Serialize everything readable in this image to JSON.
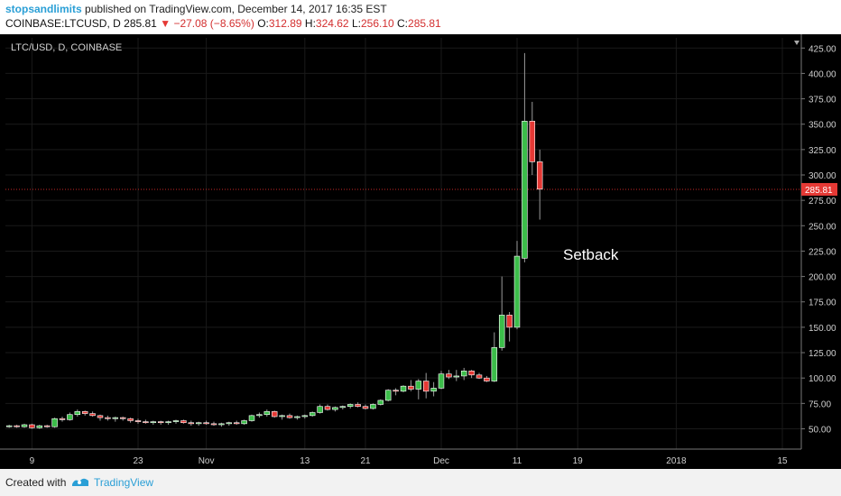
{
  "header": {
    "user": "stopsandlimits",
    "published_text": " published on TradingView.com, December 14, 2017 16:35 EST",
    "symbol": "COINBASE:LTCUSD, D",
    "last": "285.81",
    "down_arrow": "▼",
    "change": "−27.08 (−8.65%)",
    "o_label": "O:",
    "o_value": "312.89",
    "h_label": "H:",
    "h_value": "324.62",
    "l_label": "L:",
    "l_value": "256.10",
    "c_label": "C:",
    "c_value": "285.81"
  },
  "footer": {
    "created_with": "Created with",
    "brand": "TradingView"
  },
  "chart_data": {
    "type": "candlestick",
    "title": "LTC/USD, D, COINBASE",
    "annotation": "Setback",
    "last_price_label": "285.81",
    "last_price": 285.81,
    "ylim": [
      30,
      435
    ],
    "y_ticks": [
      50,
      75,
      100,
      125,
      150,
      175,
      200,
      225,
      250,
      275,
      300,
      325,
      350,
      375,
      400,
      425
    ],
    "y_tick_labels": [
      "50.00",
      "75.00",
      "100.00",
      "125.00",
      "150.00",
      "175.00",
      "200.00",
      "225.00",
      "250.00",
      "275.00",
      "300.00",
      "325.00",
      "350.00",
      "375.00",
      "400.00",
      "425.00"
    ],
    "x_ticks": [
      {
        "label": "9",
        "index": 3
      },
      {
        "label": "23",
        "index": 17
      },
      {
        "label": "Nov",
        "index": 26
      },
      {
        "label": "13",
        "index": 39
      },
      {
        "label": "21",
        "index": 47
      },
      {
        "label": "Dec",
        "index": 57
      },
      {
        "label": "11",
        "index": 67
      },
      {
        "label": "19",
        "index": 75
      },
      {
        "label": "2018",
        "index": 88
      },
      {
        "label": "15",
        "index": 102
      }
    ],
    "x_range": [
      -0.5,
      104.5
    ],
    "candles": [
      {
        "o": 52,
        "h": 54,
        "l": 51,
        "c": 53
      },
      {
        "o": 53,
        "h": 54,
        "l": 51,
        "c": 52
      },
      {
        "o": 52,
        "h": 55,
        "l": 51,
        "c": 54
      },
      {
        "o": 54,
        "h": 55,
        "l": 50,
        "c": 51
      },
      {
        "o": 51,
        "h": 54,
        "l": 50,
        "c": 53
      },
      {
        "o": 53,
        "h": 54,
        "l": 51,
        "c": 52
      },
      {
        "o": 52,
        "h": 61,
        "l": 51,
        "c": 60
      },
      {
        "o": 60,
        "h": 62,
        "l": 57,
        "c": 59
      },
      {
        "o": 59,
        "h": 66,
        "l": 58,
        "c": 64
      },
      {
        "o": 64,
        "h": 69,
        "l": 62,
        "c": 67
      },
      {
        "o": 67,
        "h": 68,
        "l": 63,
        "c": 65
      },
      {
        "o": 65,
        "h": 67,
        "l": 62,
        "c": 63
      },
      {
        "o": 63,
        "h": 64,
        "l": 58,
        "c": 61
      },
      {
        "o": 61,
        "h": 63,
        "l": 58,
        "c": 60
      },
      {
        "o": 60,
        "h": 62,
        "l": 57,
        "c": 61
      },
      {
        "o": 61,
        "h": 62,
        "l": 58,
        "c": 60
      },
      {
        "o": 60,
        "h": 61,
        "l": 56,
        "c": 58
      },
      {
        "o": 58,
        "h": 60,
        "l": 55,
        "c": 57
      },
      {
        "o": 57,
        "h": 59,
        "l": 55,
        "c": 56
      },
      {
        "o": 56,
        "h": 58,
        "l": 54,
        "c": 57
      },
      {
        "o": 57,
        "h": 58,
        "l": 54,
        "c": 56
      },
      {
        "o": 56,
        "h": 58,
        "l": 54,
        "c": 57
      },
      {
        "o": 57,
        "h": 59,
        "l": 55,
        "c": 58
      },
      {
        "o": 58,
        "h": 59,
        "l": 55,
        "c": 56
      },
      {
        "o": 56,
        "h": 58,
        "l": 53,
        "c": 55
      },
      {
        "o": 55,
        "h": 57,
        "l": 53,
        "c": 56
      },
      {
        "o": 56,
        "h": 58,
        "l": 54,
        "c": 55
      },
      {
        "o": 55,
        "h": 57,
        "l": 53,
        "c": 54
      },
      {
        "o": 54,
        "h": 56,
        "l": 52,
        "c": 55
      },
      {
        "o": 55,
        "h": 57,
        "l": 53,
        "c": 56
      },
      {
        "o": 56,
        "h": 58,
        "l": 54,
        "c": 55
      },
      {
        "o": 55,
        "h": 59,
        "l": 54,
        "c": 58
      },
      {
        "o": 58,
        "h": 64,
        "l": 57,
        "c": 63
      },
      {
        "o": 63,
        "h": 66,
        "l": 61,
        "c": 64
      },
      {
        "o": 64,
        "h": 69,
        "l": 62,
        "c": 67
      },
      {
        "o": 67,
        "h": 68,
        "l": 61,
        "c": 62
      },
      {
        "o": 62,
        "h": 64,
        "l": 59,
        "c": 63
      },
      {
        "o": 63,
        "h": 65,
        "l": 60,
        "c": 61
      },
      {
        "o": 61,
        "h": 63,
        "l": 59,
        "c": 62
      },
      {
        "o": 62,
        "h": 64,
        "l": 60,
        "c": 63
      },
      {
        "o": 63,
        "h": 67,
        "l": 62,
        "c": 66
      },
      {
        "o": 66,
        "h": 74,
        "l": 65,
        "c": 72
      },
      {
        "o": 72,
        "h": 74,
        "l": 68,
        "c": 69
      },
      {
        "o": 69,
        "h": 72,
        "l": 67,
        "c": 71
      },
      {
        "o": 71,
        "h": 73,
        "l": 69,
        "c": 72
      },
      {
        "o": 72,
        "h": 75,
        "l": 70,
        "c": 74
      },
      {
        "o": 74,
        "h": 76,
        "l": 71,
        "c": 72
      },
      {
        "o": 72,
        "h": 74,
        "l": 69,
        "c": 70
      },
      {
        "o": 70,
        "h": 75,
        "l": 69,
        "c": 74
      },
      {
        "o": 74,
        "h": 79,
        "l": 73,
        "c": 78
      },
      {
        "o": 78,
        "h": 89,
        "l": 77,
        "c": 88
      },
      {
        "o": 88,
        "h": 90,
        "l": 83,
        "c": 87
      },
      {
        "o": 87,
        "h": 93,
        "l": 86,
        "c": 92
      },
      {
        "o": 92,
        "h": 98,
        "l": 87,
        "c": 89
      },
      {
        "o": 89,
        "h": 99,
        "l": 79,
        "c": 97
      },
      {
        "o": 97,
        "h": 105,
        "l": 80,
        "c": 87
      },
      {
        "o": 87,
        "h": 96,
        "l": 82,
        "c": 90
      },
      {
        "o": 90,
        "h": 107,
        "l": 89,
        "c": 104
      },
      {
        "o": 104,
        "h": 108,
        "l": 99,
        "c": 101
      },
      {
        "o": 101,
        "h": 108,
        "l": 97,
        "c": 102
      },
      {
        "o": 102,
        "h": 110,
        "l": 98,
        "c": 107
      },
      {
        "o": 107,
        "h": 108,
        "l": 100,
        "c": 103
      },
      {
        "o": 103,
        "h": 105,
        "l": 99,
        "c": 100
      },
      {
        "o": 100,
        "h": 102,
        "l": 96,
        "c": 97
      },
      {
        "o": 97,
        "h": 145,
        "l": 96,
        "c": 130
      },
      {
        "o": 130,
        "h": 200,
        "l": 127,
        "c": 162
      },
      {
        "o": 162,
        "h": 165,
        "l": 136,
        "c": 150
      },
      {
        "o": 150,
        "h": 235,
        "l": 148,
        "c": 220
      },
      {
        "o": 218,
        "h": 420,
        "l": 214,
        "c": 353
      },
      {
        "o": 353,
        "h": 372,
        "l": 300,
        "c": 313
      },
      {
        "o": 313,
        "h": 325,
        "l": 256,
        "c": 286
      }
    ]
  }
}
